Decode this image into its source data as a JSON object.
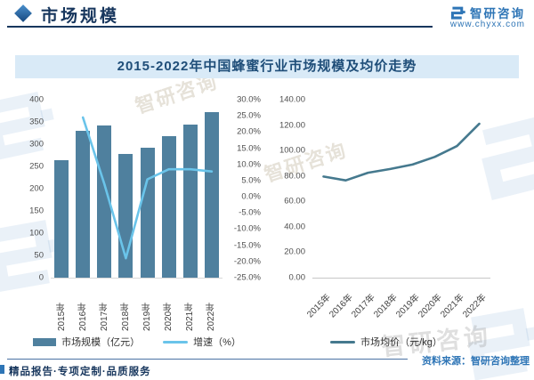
{
  "header": {
    "section_title": "市场规模",
    "brand_name": "智研咨询",
    "brand_site": "www.chyxx.com"
  },
  "figure_title": "2015-2022年中国蜂蜜行业市场规模及均价走势",
  "chart_data": [
    {
      "type": "bar",
      "name": "market-size-and-growth",
      "categories": [
        "2015年",
        "2016年",
        "2017年",
        "2018年",
        "2019年",
        "2020年",
        "2021年",
        "2022年"
      ],
      "series": [
        {
          "name": "市场规模（亿元）",
          "chart": "bar",
          "axis": "left",
          "color": "#4f809e",
          "values": [
            265,
            330,
            343,
            278,
            293,
            318,
            345,
            372
          ]
        },
        {
          "name": "增速（%）",
          "chart": "line",
          "axis": "right",
          "color": "#6ac4ea",
          "values": [
            null,
            24.5,
            3.9,
            -19.0,
            5.4,
            8.5,
            8.5,
            7.8
          ]
        }
      ],
      "left_axis": {
        "min": 0,
        "max": 400,
        "ticks": [
          "400",
          "350",
          "300",
          "250",
          "200",
          "150",
          "100",
          "50",
          "0"
        ]
      },
      "right_axis": {
        "min": -25,
        "max": 30,
        "ticks": [
          "30.0%",
          "25.0%",
          "20.0%",
          "15.0%",
          "10.0%",
          "5.0%",
          "0.0%",
          "-5.0%",
          "-10.0%",
          "-15.0%",
          "-20.0%",
          "-25.0%"
        ]
      },
      "legend_position": "bottom",
      "grid": false
    },
    {
      "type": "line",
      "name": "average-price",
      "categories": [
        "2015年",
        "2016年",
        "2017年",
        "2018年",
        "2019年",
        "2020年",
        "2021年",
        "2022年"
      ],
      "series": [
        {
          "name": "市场均价（元/kg）",
          "chart": "line",
          "axis": "left",
          "color": "#45798e",
          "values": [
            79.5,
            76.5,
            82.5,
            85.5,
            89.0,
            95.0,
            103.5,
            121.0
          ]
        }
      ],
      "left_axis": {
        "min": 0,
        "max": 140,
        "ticks": [
          "140.00",
          "120.00",
          "100.00",
          "80.00",
          "60.00",
          "40.00",
          "20.00",
          "0.00"
        ]
      },
      "legend_position": "bottom",
      "grid": false
    }
  ],
  "footer": {
    "source_note": "资料来源：智研咨询整理",
    "tagline": "精品报告·专项定制·品质服务"
  },
  "watermark_text": "智研咨询"
}
